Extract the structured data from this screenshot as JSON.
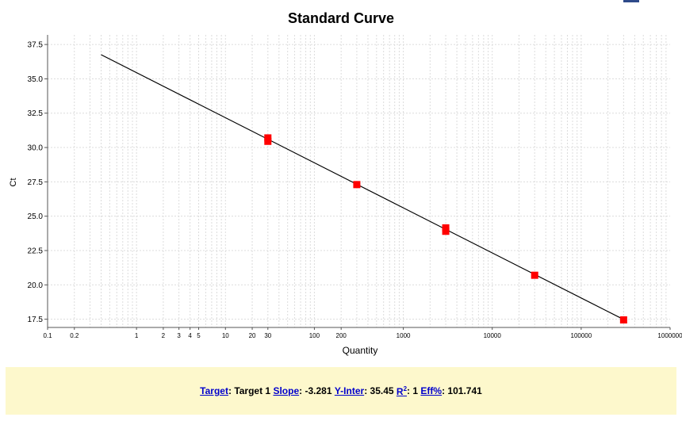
{
  "chart_data": {
    "type": "scatter",
    "title": "Standard Curve",
    "xlabel": "Quantity",
    "ylabel": "Ct",
    "x_scale": "log",
    "xlim": [
      0.1,
      1000000
    ],
    "ylim": [
      16.9,
      38.2
    ],
    "grid": true,
    "x_ticks": [
      {
        "v": 0.1,
        "label": "0.1"
      },
      {
        "v": 0.2,
        "label": "0.2"
      },
      {
        "v": 1,
        "label": "1"
      },
      {
        "v": 2,
        "label": "2"
      },
      {
        "v": 3,
        "label": "3"
      },
      {
        "v": 4,
        "label": "4"
      },
      {
        "v": 5,
        "label": "5"
      },
      {
        "v": 10,
        "label": "10"
      },
      {
        "v": 20,
        "label": "20"
      },
      {
        "v": 30,
        "label": "30"
      },
      {
        "v": 100,
        "label": "100"
      },
      {
        "v": 200,
        "label": "200"
      },
      {
        "v": 1000,
        "label": "1000"
      },
      {
        "v": 10000,
        "label": "10000"
      },
      {
        "v": 100000,
        "label": "100000"
      },
      {
        "v": 1000000,
        "label": "1000000"
      }
    ],
    "y_ticks": [
      17.5,
      20.0,
      22.5,
      25.0,
      27.5,
      30.0,
      32.5,
      35.0,
      37.5
    ],
    "points": [
      {
        "x": 30,
        "y": 30.7
      },
      {
        "x": 30,
        "y": 30.45
      },
      {
        "x": 300,
        "y": 27.3
      },
      {
        "x": 3000,
        "y": 24.15
      },
      {
        "x": 3000,
        "y": 23.9
      },
      {
        "x": 30000,
        "y": 20.7
      },
      {
        "x": 300000,
        "y": 17.45
      }
    ],
    "fit_line": {
      "x_start": 0.4,
      "x_end": 300000,
      "slope": -3.281,
      "intercept": 35.45
    },
    "marker_color": "#ff0000",
    "line_color": "#000000"
  },
  "footer": {
    "target_label": "Target",
    "target_value": "Target 1",
    "slope_label": "Slope",
    "slope_value": "-3.281",
    "yinter_label": "Y-Inter",
    "yinter_value": "35.45",
    "r2_label": "R",
    "r2_sup": "2",
    "r2_value": "1",
    "eff_label": "Eff%",
    "eff_value": "101.741"
  }
}
